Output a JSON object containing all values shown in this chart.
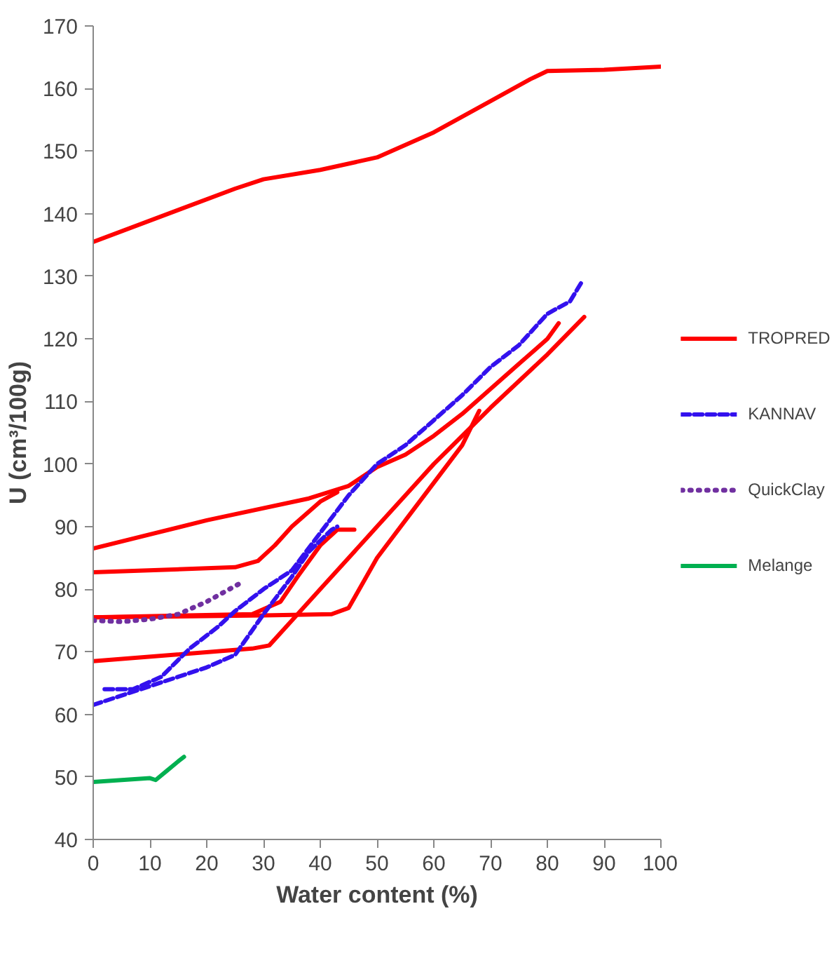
{
  "chart_data": {
    "type": "line",
    "xlabel": "Water content (%)",
    "ylabel": "U (cm³/100g)",
    "xlim": [
      0,
      100
    ],
    "ylim": [
      40,
      170
    ],
    "xticks": [
      0,
      10,
      20,
      30,
      40,
      50,
      60,
      70,
      80,
      90,
      100
    ],
    "yticks": [
      40,
      50,
      60,
      70,
      80,
      90,
      100,
      110,
      120,
      130,
      140,
      150,
      160,
      170
    ],
    "grid": false,
    "legend": "right",
    "series": [
      {
        "name": "TROPRED",
        "color": "#ff0000",
        "line_style": "solid",
        "x": [
          0,
          25,
          30,
          40,
          50,
          60,
          70,
          77,
          80,
          90,
          100
        ],
        "values": [
          135.5,
          144,
          145.5,
          147,
          149,
          153,
          158,
          161.5,
          162.8,
          163,
          163.5
        ]
      },
      {
        "color": "#ff0000",
        "line_style": "solid",
        "x": [
          0,
          20,
          38,
          45,
          50,
          55,
          60,
          65,
          70,
          75,
          80,
          82
        ],
        "values": [
          86.5,
          91,
          94.5,
          96.5,
          99.5,
          101.5,
          104.5,
          108,
          112,
          116,
          120,
          122.5
        ]
      },
      {
        "color": "#ff0000",
        "line_style": "solid",
        "x": [
          0,
          25,
          29,
          32,
          35,
          40,
          43
        ],
        "values": [
          82.7,
          83.5,
          84.5,
          87,
          90,
          94,
          95.5
        ]
      },
      {
        "color": "#ff0000",
        "line_style": "solid",
        "x": [
          0,
          28,
          33,
          36,
          40,
          43,
          46
        ],
        "values": [
          75.5,
          76,
          78,
          82,
          87,
          89.5,
          89.5
        ]
      },
      {
        "color": "#ff0000",
        "line_style": "solid",
        "x": [
          0,
          30,
          42,
          45,
          50,
          55,
          60,
          65,
          68
        ],
        "values": [
          75.5,
          75.8,
          76,
          77,
          85,
          91,
          97,
          103,
          108.5
        ]
      },
      {
        "color": "#ff0000",
        "line_style": "solid",
        "x": [
          0,
          28,
          31,
          35,
          40,
          45,
          50,
          55,
          60,
          70,
          80,
          86.5
        ],
        "values": [
          68.5,
          70.5,
          71,
          75,
          80,
          85,
          90,
          95,
          100,
          109,
          117.5,
          123.5
        ]
      },
      {
        "name": "KANNAV",
        "color": "#3311ee",
        "line_style": "dashed",
        "x": [
          2,
          7,
          12,
          17,
          22,
          25,
          30,
          35,
          40,
          45,
          50,
          55,
          60,
          65,
          70,
          75,
          80,
          84,
          86
        ],
        "values": [
          64,
          64,
          66,
          70.5,
          74,
          76.5,
          80,
          83,
          89,
          95,
          100,
          103,
          107,
          111,
          115.5,
          119,
          124,
          126,
          129
        ]
      },
      {
        "color": "#3311ee",
        "line_style": "dashed",
        "x": [
          0,
          10,
          20,
          25,
          30,
          35,
          38,
          42,
          43
        ],
        "values": [
          61.5,
          64.5,
          67.5,
          69.5,
          76,
          82,
          86,
          89.5,
          90
        ]
      },
      {
        "name": "QuickClay",
        "color": "#7030a0",
        "line_style": "dotted",
        "x": [
          0,
          5,
          10,
          15,
          20,
          23,
          26
        ],
        "values": [
          75,
          74.8,
          75.2,
          76,
          78,
          79.5,
          81
        ]
      },
      {
        "name": "Melange",
        "color": "#00b050",
        "line_style": "solid",
        "x": [
          0,
          10,
          11,
          13,
          15,
          16
        ],
        "values": [
          49.2,
          49.8,
          49.5,
          51,
          52.5,
          53.2
        ]
      }
    ]
  }
}
